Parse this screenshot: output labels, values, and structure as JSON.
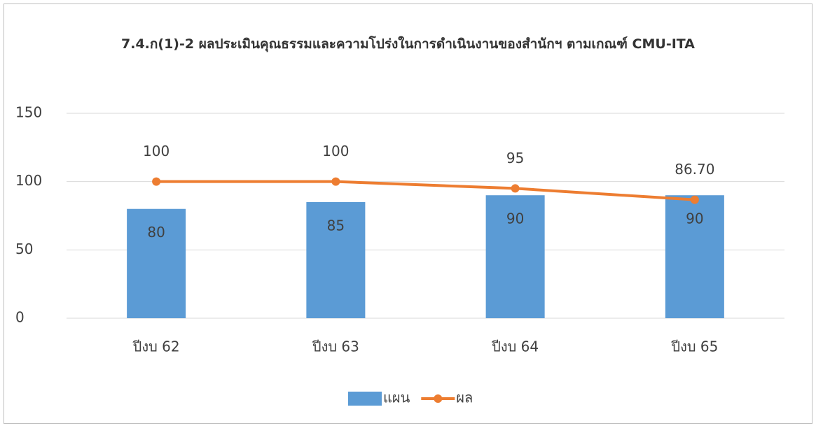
{
  "chart_data": {
    "type": "bar",
    "title": "7.4.ก(1)-2 ผลประเมินคุณธรรมและความโปร่งในการดำเนินงานของสำนักฯ ตามเกณฑ์ CMU-ITA",
    "categories": [
      "ปีงบ 62",
      "ปีงบ 63",
      "ปีงบ 64",
      "ปีงบ 65"
    ],
    "series": [
      {
        "name": "แผน",
        "type": "bar",
        "color": "#5b9bd5",
        "values": [
          80,
          85,
          90,
          90
        ]
      },
      {
        "name": "ผล",
        "type": "line",
        "color": "#ed7d31",
        "values": [
          100,
          100,
          95,
          86.7
        ],
        "value_labels": [
          "100",
          "100",
          "95",
          "86.70"
        ]
      }
    ],
    "ylim": [
      0,
      150
    ],
    "yticks": [
      0,
      50,
      100,
      150
    ],
    "grid": true,
    "legend": "bottom"
  }
}
